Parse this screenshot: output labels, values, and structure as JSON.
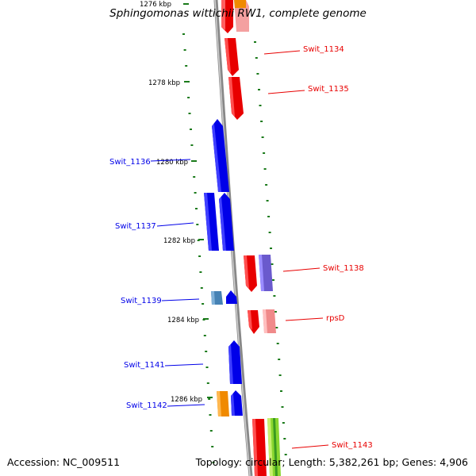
{
  "title": "Sphingomonas wittichii RW1, complete genome",
  "footer": {
    "accession": "Accession: NC_009511",
    "topology": "Topology: circular; Length: 5,382,261 bp; Genes: 4,906"
  },
  "kbp_ticks": [
    "1276 kbp",
    "1278 kbp",
    "1280 kbp",
    "1282 kbp",
    "1284 kbp",
    "1286 kbp"
  ],
  "genes_right": [
    "Swit_1134",
    "Swit_1135",
    "Swit_1138",
    "rpsD",
    "Swit_1143"
  ],
  "genes_left": [
    "Swit_1136",
    "Swit_1137",
    "Swit_1139",
    "Swit_1141",
    "Swit_1142"
  ],
  "colors": {
    "forward_strand": "#ee0000",
    "reverse_strand": "#0000ee",
    "backbone": "#888888",
    "tick": "#1a7a1a",
    "pink": "#f08a8a",
    "purple": "#6a5acd",
    "steelblue": "#4682b4",
    "orange": "#f08a00",
    "green": "#8ad630",
    "salmon": "#f07060"
  }
}
